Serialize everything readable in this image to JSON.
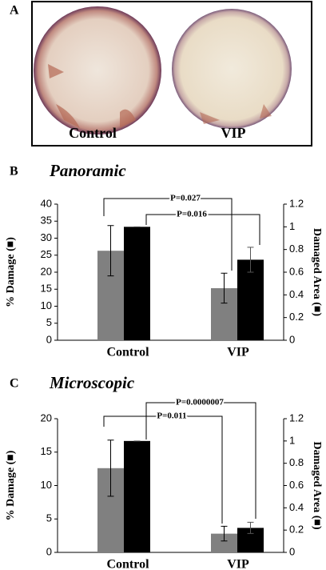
{
  "panel_a": {
    "label": "A",
    "captions": [
      "Control",
      "VIP"
    ]
  },
  "chart_data": [
    {
      "type": "bar",
      "panel_label": "B",
      "title": "Panoramic",
      "ylabel": "% Damage (■)",
      "y2label": "Damaged Area (■)",
      "categories": [
        "Control",
        "VIP"
      ],
      "ylim": [
        0,
        40
      ],
      "yticks": [
        0,
        5,
        10,
        15,
        20,
        25,
        30,
        35,
        40
      ],
      "y2lim": [
        0,
        1.2
      ],
      "y2ticks": [
        0,
        0.2,
        0.4,
        0.6,
        0.8,
        1,
        1.2
      ],
      "series": [
        {
          "color": "#808080",
          "values": [
            26.3,
            15.3
          ],
          "errors": [
            7.4,
            4.4
          ]
        },
        {
          "color": "#000000",
          "axis": "y2",
          "values": [
            1.0,
            0.71
          ],
          "errors": [
            0,
            0.11
          ]
        }
      ],
      "annotations": [
        "P=0.027",
        "P=0.016"
      ]
    },
    {
      "type": "bar",
      "panel_label": "C",
      "title": "Microscopic",
      "ylabel": "% Damage (■)",
      "y2label": "Damaged Area (■)",
      "categories": [
        "Control",
        "VIP"
      ],
      "ylim": [
        0,
        20
      ],
      "yticks": [
        0,
        5,
        10,
        15,
        20
      ],
      "y2lim": [
        0,
        1.2
      ],
      "y2ticks": [
        0,
        0.2,
        0.4,
        0.6,
        0.8,
        1,
        1.2
      ],
      "series": [
        {
          "color": "#808080",
          "values": [
            12.6,
            2.8
          ],
          "errors": [
            4.2,
            1.1
          ]
        },
        {
          "color": "#000000",
          "axis": "y2",
          "values": [
            1.0,
            0.22
          ],
          "errors": [
            0,
            0.05
          ]
        }
      ],
      "annotations": [
        "P=0.0000007",
        "P=0.011"
      ]
    }
  ]
}
